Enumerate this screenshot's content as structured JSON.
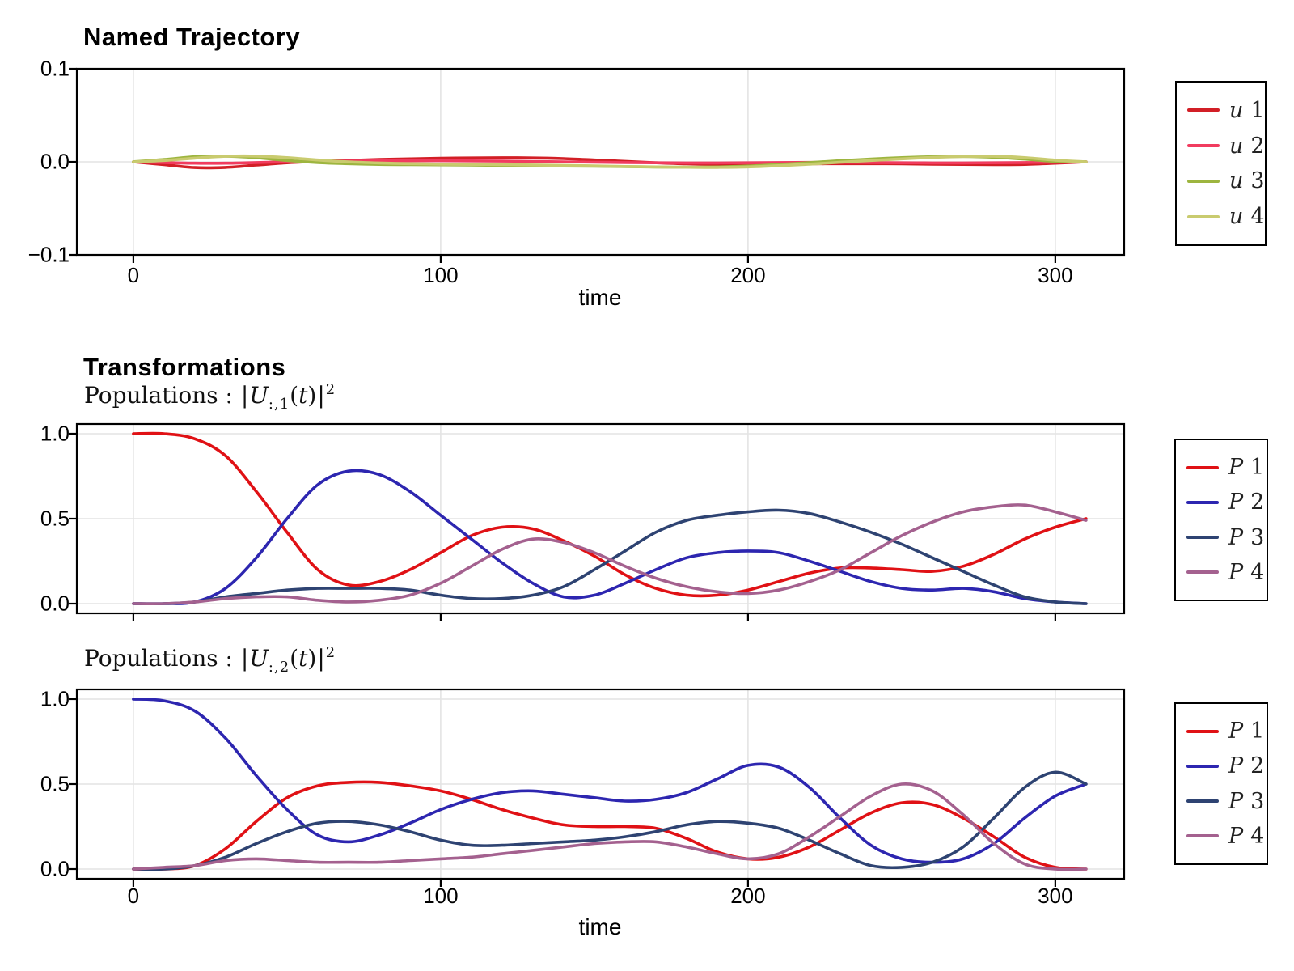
{
  "page_background": "#ffffff",
  "grid_color": "#e4e4e4",
  "frame_color": "#000000",
  "chart_data": [
    {
      "type": "line",
      "title": "Named Trajectory",
      "xlabel": "time",
      "xlim": [
        -18.4,
        322.4
      ],
      "ylim": [
        -0.1,
        0.1
      ],
      "grid": true,
      "legend_position": "right-outside",
      "xticks": [
        {
          "v": 0,
          "label": "0"
        },
        {
          "v": 100,
          "label": "100"
        },
        {
          "v": 200,
          "label": "200"
        },
        {
          "v": 300,
          "label": "300"
        }
      ],
      "yticks": [
        {
          "v": 0.1,
          "label": "0.1"
        },
        {
          "v": 0.0,
          "label": "0.0"
        },
        {
          "v": -0.1,
          "label": "−0.1"
        }
      ],
      "xtick_labels_visible": true,
      "series": [
        {
          "name": "u 1",
          "name_var": "u",
          "name_num": "1",
          "color": "#d21f26",
          "x": [
            0,
            10,
            20,
            30,
            40,
            50,
            60,
            70,
            80,
            90,
            100,
            110,
            120,
            130,
            140,
            150,
            160,
            170,
            180,
            190,
            200,
            210,
            220,
            230,
            240,
            250,
            260,
            270,
            280,
            290,
            300,
            310
          ],
          "y": [
            0,
            -0.003,
            -0.0062,
            -0.006,
            -0.0035,
            -0.001,
            0.0005,
            0.0015,
            0.0025,
            0.0032,
            0.0038,
            0.0042,
            0.0044,
            0.0042,
            0.0035,
            0.002,
            0.0005,
            -0.001,
            -0.0022,
            -0.0028,
            -0.0028,
            -0.0025,
            -0.0022,
            -0.002,
            -0.002,
            -0.0022,
            -0.0025,
            -0.0028,
            -0.003,
            -0.0028,
            -0.0015,
            0
          ]
        },
        {
          "name": "u 2",
          "name_var": "u",
          "name_num": "2",
          "color": "#f13c5f",
          "x": [
            0,
            10,
            20,
            30,
            40,
            50,
            60,
            70,
            80,
            90,
            100,
            110,
            120,
            130,
            140,
            150,
            160,
            170,
            180,
            190,
            200,
            210,
            220,
            230,
            240,
            250,
            260,
            270,
            280,
            290,
            300,
            310
          ],
          "y": [
            0,
            -0.0008,
            -0.0015,
            -0.0015,
            -0.0008,
            0,
            0.0004,
            0.0008,
            0.001,
            0.0012,
            0.0012,
            0.001,
            0.0008,
            0.0004,
            0,
            -0.0004,
            -0.0008,
            -0.001,
            -0.0012,
            -0.0012,
            -0.001,
            -0.0008,
            -0.0006,
            -0.0006,
            -0.0008,
            -0.001,
            -0.0012,
            -0.0012,
            -0.001,
            -0.0008,
            -0.0004,
            0
          ]
        },
        {
          "name": "u 3",
          "name_var": "u",
          "name_num": "3",
          "color": "#9db53f",
          "x": [
            0,
            10,
            20,
            30,
            40,
            50,
            60,
            70,
            80,
            90,
            100,
            110,
            120,
            130,
            140,
            150,
            160,
            170,
            180,
            190,
            200,
            210,
            220,
            230,
            240,
            250,
            260,
            270,
            280,
            290,
            300,
            310
          ],
          "y": [
            0,
            0.0025,
            0.0055,
            0.0062,
            0.0045,
            0.0015,
            -0.0008,
            -0.002,
            -0.0028,
            -0.003,
            -0.0032,
            -0.0035,
            -0.0038,
            -0.0042,
            -0.0045,
            -0.0048,
            -0.0052,
            -0.0056,
            -0.0058,
            -0.0055,
            -0.0045,
            -0.0028,
            -0.0008,
            0.0012,
            0.003,
            0.0045,
            0.0055,
            0.0058,
            0.005,
            0.003,
            0.0005,
            0
          ]
        },
        {
          "name": "u 4",
          "name_var": "u",
          "name_num": "4",
          "color": "#c9cb6f",
          "x": [
            0,
            10,
            20,
            30,
            40,
            50,
            60,
            70,
            80,
            90,
            100,
            110,
            120,
            130,
            140,
            150,
            160,
            170,
            180,
            190,
            200,
            210,
            220,
            230,
            240,
            250,
            260,
            270,
            280,
            290,
            300,
            310
          ],
          "y": [
            0,
            0.0015,
            0.004,
            0.006,
            0.0062,
            0.0045,
            0.002,
            0,
            -0.0012,
            -0.002,
            -0.0025,
            -0.0028,
            -0.003,
            -0.0034,
            -0.0038,
            -0.0044,
            -0.005,
            -0.0055,
            -0.0058,
            -0.006,
            -0.0055,
            -0.0042,
            -0.0025,
            -0.0005,
            0.0015,
            0.0032,
            0.0048,
            0.0058,
            0.006,
            0.0045,
            0.0018,
            0
          ]
        }
      ]
    },
    {
      "type": "line",
      "title": "Transformations",
      "subtitle_parts": [
        {
          "k": "rm",
          "t": "Populations :  "
        },
        {
          "k": "bar",
          "t": "|"
        },
        {
          "k": "it",
          "t": "U"
        },
        {
          "k": "sub",
          "t": ":,1"
        },
        {
          "k": "rm",
          "t": "("
        },
        {
          "k": "it",
          "t": "t"
        },
        {
          "k": "rm",
          "t": ")"
        },
        {
          "k": "bar",
          "t": "|"
        },
        {
          "k": "sup",
          "t": "2"
        }
      ],
      "xlabel": "",
      "xlim": [
        -18.4,
        322.4
      ],
      "ylim": [
        -0.0571,
        1.0571
      ],
      "grid": true,
      "legend_position": "right-outside",
      "xticks": [
        {
          "v": 0,
          "label": "0"
        },
        {
          "v": 100,
          "label": "100"
        },
        {
          "v": 200,
          "label": "200"
        },
        {
          "v": 300,
          "label": "300"
        }
      ],
      "yticks": [
        {
          "v": 1.0,
          "label": "1.0"
        },
        {
          "v": 0.5,
          "label": "0.5"
        },
        {
          "v": 0.0,
          "label": "0.0"
        }
      ],
      "xtick_labels_visible": false,
      "series": [
        {
          "name": "P 1",
          "name_var": "P",
          "name_num": "1",
          "color": "#e01115",
          "x": [
            0,
            10,
            20,
            30,
            40,
            50,
            60,
            70,
            80,
            90,
            100,
            110,
            120,
            130,
            140,
            150,
            160,
            170,
            180,
            190,
            200,
            210,
            220,
            230,
            240,
            250,
            260,
            270,
            280,
            290,
            300,
            310
          ],
          "y": [
            1.0,
            1.0,
            0.97,
            0.87,
            0.66,
            0.42,
            0.2,
            0.11,
            0.13,
            0.2,
            0.3,
            0.4,
            0.45,
            0.44,
            0.37,
            0.28,
            0.17,
            0.09,
            0.05,
            0.05,
            0.08,
            0.13,
            0.18,
            0.21,
            0.21,
            0.2,
            0.19,
            0.22,
            0.29,
            0.38,
            0.45,
            0.5
          ]
        },
        {
          "name": "P 2",
          "name_var": "P",
          "name_num": "2",
          "color": "#2d26b0",
          "x": [
            0,
            10,
            20,
            30,
            40,
            50,
            60,
            70,
            80,
            90,
            100,
            110,
            120,
            130,
            140,
            150,
            160,
            170,
            180,
            190,
            200,
            210,
            220,
            230,
            240,
            250,
            260,
            270,
            280,
            290,
            300,
            310
          ],
          "y": [
            0,
            0,
            0.01,
            0.09,
            0.27,
            0.5,
            0.7,
            0.78,
            0.76,
            0.66,
            0.52,
            0.38,
            0.24,
            0.12,
            0.04,
            0.05,
            0.12,
            0.2,
            0.27,
            0.3,
            0.31,
            0.3,
            0.25,
            0.19,
            0.13,
            0.09,
            0.08,
            0.09,
            0.07,
            0.03,
            0.01,
            0
          ]
        },
        {
          "name": "P 3",
          "name_var": "P",
          "name_num": "3",
          "color": "#2e4372",
          "x": [
            0,
            10,
            20,
            30,
            40,
            50,
            60,
            70,
            80,
            90,
            100,
            110,
            120,
            130,
            140,
            150,
            160,
            170,
            180,
            190,
            200,
            210,
            220,
            230,
            240,
            250,
            260,
            270,
            280,
            290,
            300,
            310
          ],
          "y": [
            0,
            0,
            0.01,
            0.04,
            0.06,
            0.08,
            0.09,
            0.09,
            0.09,
            0.08,
            0.05,
            0.03,
            0.03,
            0.05,
            0.1,
            0.2,
            0.31,
            0.42,
            0.49,
            0.52,
            0.54,
            0.55,
            0.53,
            0.48,
            0.42,
            0.35,
            0.27,
            0.19,
            0.11,
            0.04,
            0.01,
            0
          ]
        },
        {
          "name": "P 4",
          "name_var": "P",
          "name_num": "4",
          "color": "#a4618f",
          "x": [
            0,
            10,
            20,
            30,
            40,
            50,
            60,
            70,
            80,
            90,
            100,
            110,
            120,
            130,
            140,
            150,
            160,
            170,
            180,
            190,
            200,
            210,
            220,
            230,
            240,
            250,
            260,
            270,
            280,
            290,
            300,
            310
          ],
          "y": [
            0,
            0,
            0.01,
            0.03,
            0.04,
            0.04,
            0.02,
            0.01,
            0.02,
            0.05,
            0.12,
            0.22,
            0.32,
            0.38,
            0.36,
            0.3,
            0.22,
            0.15,
            0.1,
            0.07,
            0.06,
            0.08,
            0.13,
            0.2,
            0.3,
            0.4,
            0.48,
            0.54,
            0.57,
            0.58,
            0.54,
            0.49
          ]
        }
      ]
    },
    {
      "type": "line",
      "title": "",
      "subtitle_parts": [
        {
          "k": "rm",
          "t": "Populations :  "
        },
        {
          "k": "bar",
          "t": "|"
        },
        {
          "k": "it",
          "t": "U"
        },
        {
          "k": "sub",
          "t": ":,2"
        },
        {
          "k": "rm",
          "t": "("
        },
        {
          "k": "it",
          "t": "t"
        },
        {
          "k": "rm",
          "t": ")"
        },
        {
          "k": "bar",
          "t": "|"
        },
        {
          "k": "sup",
          "t": "2"
        }
      ],
      "xlabel": "time",
      "xlim": [
        -18.4,
        322.4
      ],
      "ylim": [
        -0.0571,
        1.0571
      ],
      "grid": true,
      "legend_position": "right-outside",
      "xticks": [
        {
          "v": 0,
          "label": "0"
        },
        {
          "v": 100,
          "label": "100"
        },
        {
          "v": 200,
          "label": "200"
        },
        {
          "v": 300,
          "label": "300"
        }
      ],
      "yticks": [
        {
          "v": 1.0,
          "label": "1.0"
        },
        {
          "v": 0.5,
          "label": "0.5"
        },
        {
          "v": 0.0,
          "label": "0.0"
        }
      ],
      "xtick_labels_visible": true,
      "series": [
        {
          "name": "P 1",
          "name_var": "P",
          "name_num": "1",
          "color": "#e01115",
          "x": [
            0,
            10,
            20,
            30,
            40,
            50,
            60,
            70,
            80,
            90,
            100,
            110,
            120,
            130,
            140,
            150,
            160,
            170,
            180,
            190,
            200,
            210,
            220,
            230,
            240,
            250,
            260,
            270,
            280,
            290,
            300,
            310
          ],
          "y": [
            0,
            0,
            0.02,
            0.12,
            0.28,
            0.42,
            0.49,
            0.51,
            0.51,
            0.49,
            0.46,
            0.41,
            0.35,
            0.3,
            0.26,
            0.25,
            0.25,
            0.24,
            0.18,
            0.1,
            0.06,
            0.07,
            0.13,
            0.23,
            0.33,
            0.39,
            0.38,
            0.3,
            0.19,
            0.07,
            0.01,
            0
          ]
        },
        {
          "name": "P 2",
          "name_var": "P",
          "name_num": "2",
          "color": "#2d26b0",
          "x": [
            0,
            10,
            20,
            30,
            40,
            50,
            60,
            70,
            80,
            90,
            100,
            110,
            120,
            130,
            140,
            150,
            160,
            170,
            180,
            190,
            200,
            210,
            220,
            230,
            240,
            250,
            260,
            270,
            280,
            290,
            300,
            310
          ],
          "y": [
            1.0,
            0.99,
            0.93,
            0.77,
            0.55,
            0.35,
            0.2,
            0.16,
            0.2,
            0.27,
            0.35,
            0.41,
            0.45,
            0.46,
            0.44,
            0.42,
            0.4,
            0.41,
            0.45,
            0.53,
            0.61,
            0.6,
            0.48,
            0.3,
            0.14,
            0.06,
            0.04,
            0.06,
            0.15,
            0.3,
            0.43,
            0.5
          ]
        },
        {
          "name": "P 3",
          "name_var": "P",
          "name_num": "3",
          "color": "#2e4372",
          "x": [
            0,
            10,
            20,
            30,
            40,
            50,
            60,
            70,
            80,
            90,
            100,
            110,
            120,
            130,
            140,
            150,
            160,
            170,
            180,
            190,
            200,
            210,
            220,
            230,
            240,
            250,
            260,
            270,
            280,
            290,
            300,
            310
          ],
          "y": [
            0,
            0,
            0.02,
            0.07,
            0.15,
            0.22,
            0.27,
            0.28,
            0.26,
            0.22,
            0.17,
            0.14,
            0.14,
            0.15,
            0.16,
            0.17,
            0.19,
            0.22,
            0.26,
            0.28,
            0.27,
            0.24,
            0.17,
            0.09,
            0.02,
            0.01,
            0.04,
            0.13,
            0.3,
            0.48,
            0.57,
            0.5
          ]
        },
        {
          "name": "P 4",
          "name_var": "P",
          "name_num": "4",
          "color": "#a4618f",
          "x": [
            0,
            10,
            20,
            30,
            40,
            50,
            60,
            70,
            80,
            90,
            100,
            110,
            120,
            130,
            140,
            150,
            160,
            170,
            180,
            190,
            200,
            210,
            220,
            230,
            240,
            250,
            260,
            270,
            280,
            290,
            300,
            310
          ],
          "y": [
            0,
            0.01,
            0.02,
            0.05,
            0.06,
            0.05,
            0.04,
            0.04,
            0.04,
            0.05,
            0.06,
            0.07,
            0.09,
            0.11,
            0.13,
            0.15,
            0.16,
            0.16,
            0.13,
            0.09,
            0.06,
            0.09,
            0.19,
            0.31,
            0.43,
            0.5,
            0.46,
            0.32,
            0.15,
            0.03,
            0,
            0
          ]
        }
      ]
    }
  ]
}
